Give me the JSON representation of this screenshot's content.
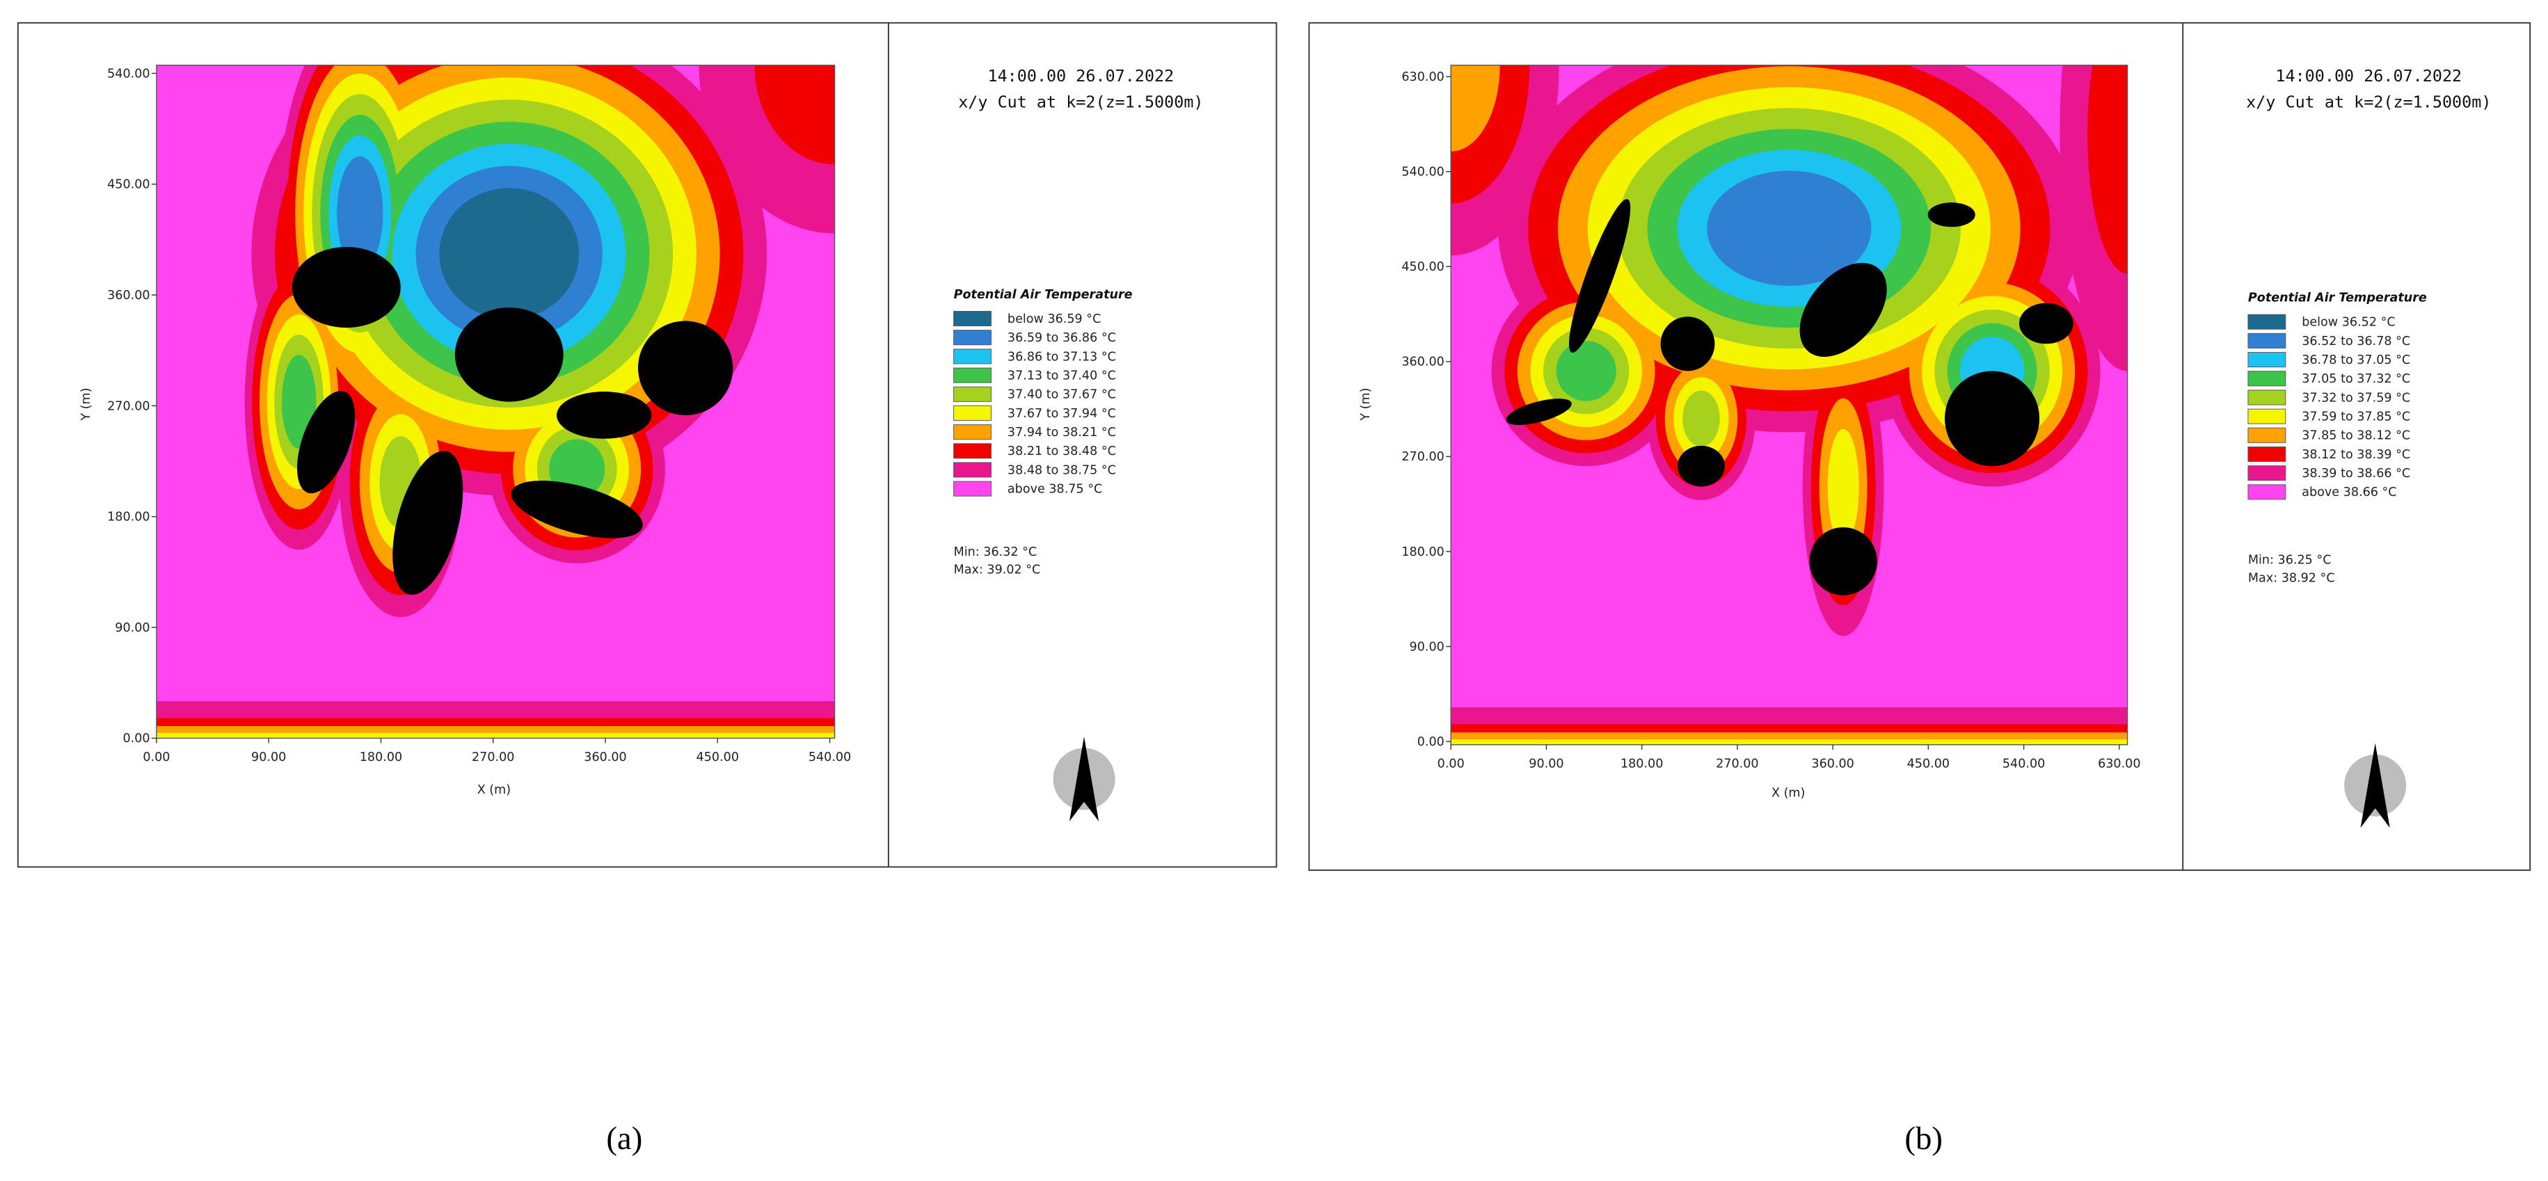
{
  "panels": [
    {
      "label": "(a)",
      "time": "14:00.00 26.07.2022",
      "cut": "x/y Cut at k=2(z=1.5000m)",
      "legend_title": "Potential Air Temperature",
      "legend": [
        {
          "label": "below 36.59 °C",
          "color": "#1c6a8e"
        },
        {
          "label": "36.59 to 36.86 °C",
          "color": "#2f7fd3"
        },
        {
          "label": "36.86 to 37.13 °C",
          "color": "#1dc3f0"
        },
        {
          "label": "37.13 to 37.40 °C",
          "color": "#3cc54a"
        },
        {
          "label": "37.40 to 37.67 °C",
          "color": "#a6d21e"
        },
        {
          "label": "37.67 to 37.94 °C",
          "color": "#f5f500"
        },
        {
          "label": "37.94 to 38.21 °C",
          "color": "#ffa200"
        },
        {
          "label": "38.21 to 38.48 °C",
          "color": "#f20000"
        },
        {
          "label": "38.48 to 38.75 °C",
          "color": "#ea168f"
        },
        {
          "label": "above 38.75 °C",
          "color": "#ff44f0"
        }
      ],
      "min": "Min: 36.32 °C",
      "max": "Max: 39.02 °C",
      "x_label": "X (m)",
      "y_label": "Y (m)",
      "xticks": [
        "0.00",
        "90.00",
        "180.00",
        "270.00",
        "360.00",
        "450.00",
        "540.00"
      ],
      "yticks": [
        "0.00",
        "90.00",
        "180.00",
        "270.00",
        "360.00",
        "450.00",
        "540.00"
      ]
    },
    {
      "label": "(b)",
      "time": "14:00.00 26.07.2022",
      "cut": "x/y Cut at k=2(z=1.5000m)",
      "legend_title": "Potential Air Temperature",
      "legend": [
        {
          "label": "below 36.52 °C",
          "color": "#1c6a8e"
        },
        {
          "label": "36.52 to 36.78 °C",
          "color": "#2f7fd3"
        },
        {
          "label": "36.78 to 37.05 °C",
          "color": "#1dc3f0"
        },
        {
          "label": "37.05 to 37.32 °C",
          "color": "#3cc54a"
        },
        {
          "label": "37.32 to 37.59 °C",
          "color": "#a6d21e"
        },
        {
          "label": "37.59 to 37.85 °C",
          "color": "#f5f500"
        },
        {
          "label": "37.85 to 38.12 °C",
          "color": "#ffa200"
        },
        {
          "label": "38.12 to 38.39 °C",
          "color": "#f20000"
        },
        {
          "label": "38.39 to 38.66 °C",
          "color": "#ea168f"
        },
        {
          "label": "above 38.66 °C",
          "color": "#ff44f0"
        }
      ],
      "min": "Min: 36.25 °C",
      "max": "Max: 38.92 °C",
      "x_label": "X (m)",
      "y_label": "Y (m)",
      "xticks": [
        "0.00",
        "90.00",
        "180.00",
        "270.00",
        "360.00",
        "450.00",
        "540.00",
        "630.00"
      ],
      "yticks": [
        "0.00",
        "90.00",
        "180.00",
        "270.00",
        "360.00",
        "450.00",
        "540.00",
        "630.00"
      ]
    }
  ]
}
